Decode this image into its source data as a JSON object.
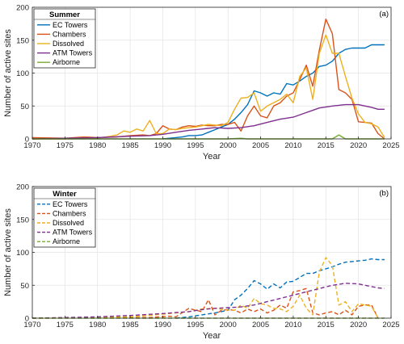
{
  "chart_data": [
    {
      "type": "line",
      "title": "",
      "panel_label": "(a)",
      "legend_title": "Summer",
      "legend_placement": "top-left",
      "line_style": "solid",
      "xlabel": "Year",
      "ylabel": "Number of active sites",
      "xlim": [
        1970,
        2025
      ],
      "ylim": [
        0,
        200
      ],
      "xticks": [
        "1970",
        "1975",
        "1980",
        "1985",
        "1990",
        "1995",
        "2000",
        "2005",
        "2010",
        "2015",
        "2020",
        "2025"
      ],
      "yticks": [
        "0",
        "50",
        "100",
        "150",
        "200"
      ],
      "grid": true,
      "series": [
        {
          "name": "EC Towers",
          "color": "#0072BD",
          "x": [
            1990,
            1991,
            1992,
            1993,
            1994,
            1995,
            1996,
            1997,
            1998,
            1999,
            2000,
            2001,
            2002,
            2003,
            2004,
            2005,
            2006,
            2007,
            2008,
            2009,
            2010,
            2011,
            2012,
            2013,
            2014,
            2015,
            2016,
            2017,
            2018,
            2019,
            2020,
            2021,
            2022,
            2023,
            2024
          ],
          "y": [
            0,
            1,
            2,
            3,
            5,
            5,
            6,
            10,
            14,
            18,
            22,
            30,
            40,
            52,
            73,
            70,
            65,
            70,
            68,
            84,
            82,
            88,
            95,
            100,
            110,
            112,
            118,
            130,
            136,
            138,
            138,
            138,
            143,
            143,
            143
          ]
        },
        {
          "name": "Chambers",
          "color": "#D95319",
          "x": [
            1970,
            1975,
            1978,
            1980,
            1983,
            1985,
            1987,
            1988,
            1989,
            1990,
            1991,
            1992,
            1993,
            1994,
            1995,
            1996,
            1997,
            1998,
            1999,
            2000,
            2001,
            2002,
            2003,
            2004,
            2005,
            2006,
            2007,
            2008,
            2009,
            2010,
            2011,
            2012,
            2013,
            2014,
            2015,
            2016,
            2017,
            2018,
            2019,
            2020,
            2021,
            2022,
            2023,
            2024
          ],
          "y": [
            2,
            1,
            3,
            2,
            3,
            5,
            6,
            5,
            8,
            20,
            15,
            14,
            18,
            20,
            19,
            21,
            20,
            20,
            22,
            22,
            25,
            12,
            35,
            50,
            35,
            32,
            50,
            55,
            65,
            70,
            90,
            112,
            80,
            135,
            182,
            160,
            75,
            70,
            60,
            26,
            25,
            24,
            8,
            0
          ]
        },
        {
          "name": "Dissolved",
          "color": "#EDB120",
          "x": [
            1970,
            1975,
            1978,
            1980,
            1982,
            1983,
            1984,
            1985,
            1986,
            1987,
            1988,
            1989,
            1990,
            1991,
            1992,
            1993,
            1994,
            1995,
            1996,
            1997,
            1998,
            1999,
            2000,
            2001,
            2002,
            2003,
            2004,
            2005,
            2006,
            2007,
            2008,
            2009,
            2010,
            2011,
            2012,
            2013,
            2014,
            2015,
            2016,
            2017,
            2018,
            2019,
            2020,
            2021,
            2022,
            2023,
            2024
          ],
          "y": [
            0,
            0,
            2,
            1,
            4,
            6,
            12,
            10,
            15,
            12,
            28,
            8,
            8,
            15,
            14,
            16,
            17,
            18,
            20,
            22,
            21,
            20,
            25,
            45,
            62,
            63,
            70,
            42,
            50,
            55,
            60,
            68,
            55,
            95,
            108,
            60,
            130,
            158,
            130,
            130,
            95,
            62,
            38,
            25,
            23,
            18,
            2
          ]
        },
        {
          "name": "ATM Towers",
          "color": "#7E2F8E",
          "x": [
            1970,
            1975,
            1980,
            1985,
            1988,
            1990,
            1992,
            1994,
            1996,
            1998,
            2000,
            2002,
            2004,
            2006,
            2008,
            2010,
            2012,
            2014,
            2016,
            2018,
            2020,
            2022,
            2023,
            2024
          ],
          "y": [
            0,
            1,
            2,
            4,
            5,
            7,
            10,
            13,
            15,
            17,
            16,
            17,
            20,
            25,
            30,
            33,
            40,
            47,
            50,
            52,
            52,
            48,
            45,
            45
          ]
        },
        {
          "name": "Airborne",
          "color": "#77AC30",
          "x": [
            1970,
            2000,
            2002,
            2003,
            2004,
            2008,
            2012,
            2015,
            2016,
            2017,
            2018,
            2020,
            2024
          ],
          "y": [
            0,
            0,
            1,
            0,
            0,
            0,
            0,
            0,
            0,
            6,
            0,
            0,
            0
          ]
        }
      ]
    },
    {
      "type": "line",
      "title": "",
      "panel_label": "(b)",
      "legend_title": "Winter",
      "legend_placement": "top-left",
      "line_style": "dashed",
      "xlabel": "Year",
      "ylabel": "Number of active sites",
      "xlim": [
        1970,
        2025
      ],
      "ylim": [
        0,
        200
      ],
      "xticks": [
        "1970",
        "1975",
        "1980",
        "1985",
        "1990",
        "1995",
        "2000",
        "2005",
        "2010",
        "2015",
        "2020",
        "2025"
      ],
      "yticks": [
        "0",
        "50",
        "100",
        "150",
        "200"
      ],
      "grid": true,
      "series": [
        {
          "name": "EC Towers",
          "color": "#0072BD",
          "x": [
            1992,
            1994,
            1996,
            1998,
            2000,
            2001,
            2002,
            2003,
            2004,
            2005,
            2006,
            2007,
            2008,
            2009,
            2010,
            2011,
            2012,
            2013,
            2014,
            2015,
            2016,
            2017,
            2018,
            2019,
            2020,
            2021,
            2022,
            2023,
            2024
          ],
          "y": [
            0,
            2,
            5,
            8,
            12,
            28,
            35,
            45,
            57,
            52,
            44,
            52,
            46,
            55,
            56,
            62,
            68,
            68,
            72,
            75,
            78,
            82,
            85,
            86,
            87,
            88,
            90,
            89,
            89
          ]
        },
        {
          "name": "Chambers",
          "color": "#D95319",
          "x": [
            1970,
            1988,
            1991,
            1992,
            1994,
            1995,
            1996,
            1997,
            1998,
            1999,
            2000,
            2001,
            2002,
            2003,
            2004,
            2005,
            2006,
            2007,
            2008,
            2009,
            2010,
            2011,
            2012,
            2013,
            2014,
            2015,
            2016,
            2017,
            2018,
            2019,
            2020,
            2021,
            2022,
            2023
          ],
          "y": [
            0,
            1,
            3,
            2,
            15,
            12,
            10,
            28,
            5,
            12,
            13,
            12,
            8,
            14,
            10,
            14,
            8,
            12,
            20,
            15,
            40,
            42,
            45,
            8,
            5,
            8,
            10,
            5,
            12,
            5,
            18,
            20,
            20,
            0
          ]
        },
        {
          "name": "Dissolved",
          "color": "#EDB120",
          "x": [
            1970,
            1985,
            1990,
            1992,
            1994,
            1996,
            1998,
            2000,
            2001,
            2002,
            2003,
            2004,
            2005,
            2006,
            2007,
            2008,
            2009,
            2010,
            2011,
            2012,
            2013,
            2014,
            2015,
            2016,
            2017,
            2018,
            2019,
            2020,
            2021,
            2022,
            2023
          ],
          "y": [
            0,
            2,
            6,
            8,
            10,
            14,
            15,
            12,
            12,
            20,
            15,
            30,
            22,
            20,
            15,
            14,
            10,
            18,
            35,
            15,
            5,
            70,
            92,
            80,
            20,
            25,
            10,
            22,
            20,
            18,
            0
          ]
        },
        {
          "name": "ATM Towers",
          "color": "#7E2F8E",
          "x": [
            1970,
            1975,
            1980,
            1985,
            1990,
            1994,
            1996,
            1998,
            2000,
            2002,
            2004,
            2006,
            2008,
            2010,
            2012,
            2014,
            2016,
            2018,
            2020,
            2022,
            2023,
            2024
          ],
          "y": [
            0,
            1,
            2,
            4,
            7,
            10,
            13,
            15,
            16,
            17,
            20,
            25,
            30,
            35,
            40,
            45,
            50,
            53,
            52,
            48,
            46,
            45
          ]
        },
        {
          "name": "Airborne",
          "color": "#77AC30",
          "x": [
            1970,
            2024
          ],
          "y": [
            0,
            0
          ]
        }
      ]
    }
  ]
}
